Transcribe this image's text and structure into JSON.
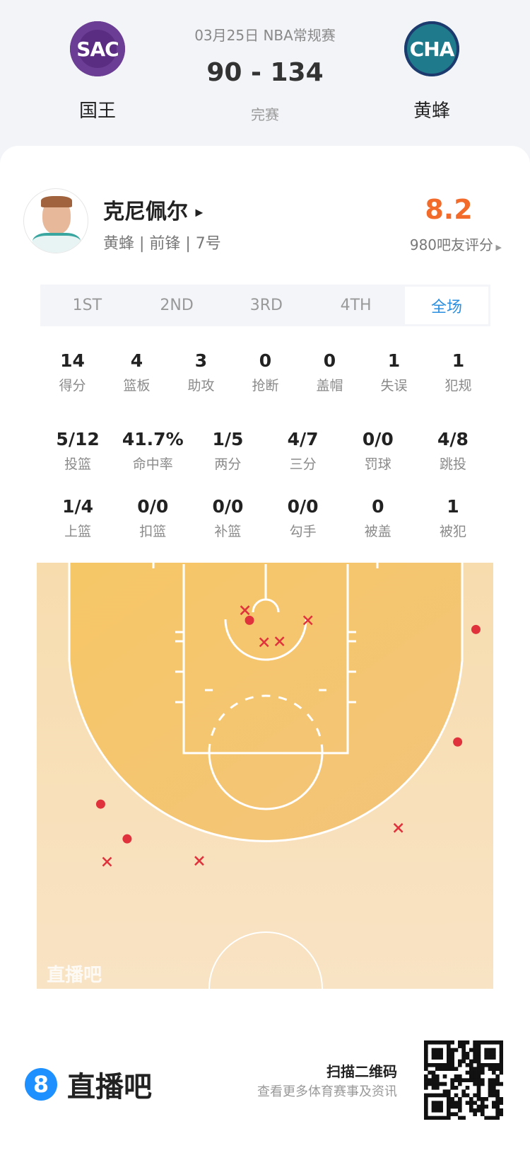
{
  "match": {
    "date_league": "03月25日 NBA常规赛",
    "score": "90 - 134",
    "status": "完赛",
    "home": {
      "abbr": "SAC",
      "name": "国王",
      "color": "#5a2d82"
    },
    "away": {
      "abbr": "CHA",
      "name": "黄蜂",
      "color": "#1d4f72"
    }
  },
  "player": {
    "name": "克尼佩尔",
    "info": "黄蜂 | 前锋 | 7号",
    "rating": "8.2",
    "rating_color": "#f26b2a",
    "rating_count_label": "980吧友评分"
  },
  "tabs": [
    {
      "label": "1ST",
      "active": false
    },
    {
      "label": "2ND",
      "active": false
    },
    {
      "label": "3RD",
      "active": false
    },
    {
      "label": "4TH",
      "active": false
    },
    {
      "label": "全场",
      "active": true
    }
  ],
  "stats_row1": [
    {
      "value": "14",
      "label": "得分"
    },
    {
      "value": "4",
      "label": "篮板"
    },
    {
      "value": "3",
      "label": "助攻"
    },
    {
      "value": "0",
      "label": "抢断"
    },
    {
      "value": "0",
      "label": "盖帽"
    },
    {
      "value": "1",
      "label": "失误"
    },
    {
      "value": "1",
      "label": "犯规"
    }
  ],
  "stats_row2": [
    {
      "value": "5/12",
      "label": "投篮"
    },
    {
      "value": "41.7%",
      "label": "命中率"
    },
    {
      "value": "1/5",
      "label": "两分"
    },
    {
      "value": "4/7",
      "label": "三分"
    },
    {
      "value": "0/0",
      "label": "罚球"
    },
    {
      "value": "4/8",
      "label": "跳投"
    }
  ],
  "stats_row3": [
    {
      "value": "1/4",
      "label": "上篮"
    },
    {
      "value": "0/0",
      "label": "扣篮"
    },
    {
      "value": "0/0",
      "label": "补篮"
    },
    {
      "value": "0/0",
      "label": "勾手"
    },
    {
      "value": "0",
      "label": "被盖"
    },
    {
      "value": "1",
      "label": "被犯"
    }
  ],
  "shot_chart": {
    "watermark": "直播吧",
    "units": "feet (x from left sideline, y from baseline)",
    "made_color": "#e0323c",
    "shots": [
      {
        "x": 23.3,
        "y": 6.3,
        "made": true
      },
      {
        "x": 48.1,
        "y": 7.3,
        "made": true
      },
      {
        "x": 46.1,
        "y": 19.6,
        "made": true
      },
      {
        "x": 7.0,
        "y": 26.4,
        "made": true
      },
      {
        "x": 9.9,
        "y": 30.2,
        "made": true
      },
      {
        "x": 22.8,
        "y": 5.2,
        "made": false
      },
      {
        "x": 29.7,
        "y": 6.3,
        "made": false
      },
      {
        "x": 24.9,
        "y": 8.7,
        "made": false
      },
      {
        "x": 26.6,
        "y": 8.6,
        "made": false
      },
      {
        "x": 39.6,
        "y": 29.0,
        "made": false
      },
      {
        "x": 7.7,
        "y": 32.7,
        "made": false
      },
      {
        "x": 17.8,
        "y": 32.6,
        "made": false
      }
    ]
  },
  "footer": {
    "brand_digit": "8",
    "brand_name": "直播吧",
    "qr_title": "扫描二维码",
    "qr_subtitle": "查看更多体育赛事及资讯"
  }
}
